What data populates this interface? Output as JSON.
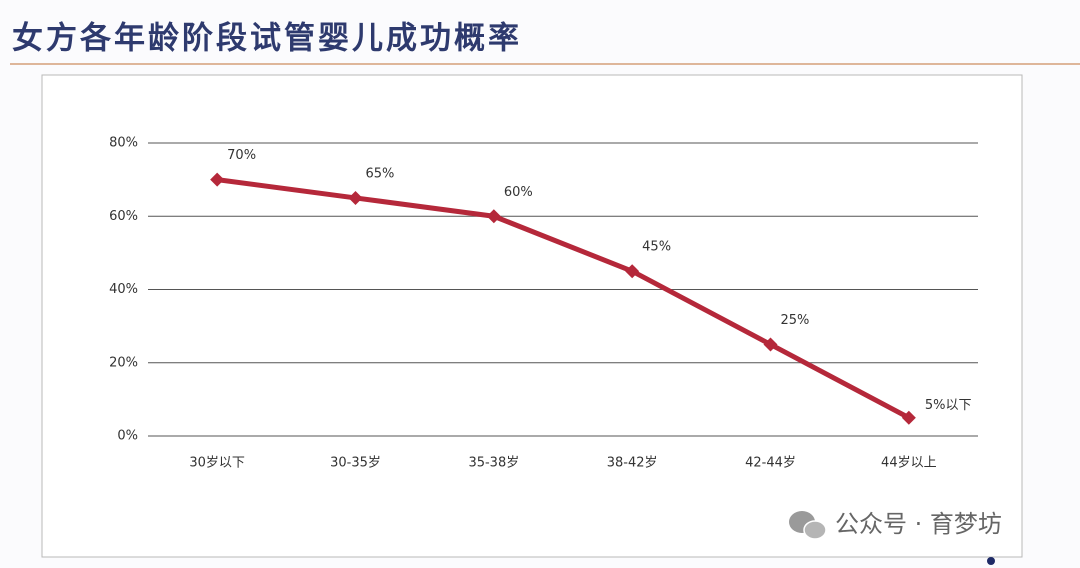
{
  "chart_data": {
    "type": "line",
    "title": "女方各年龄阶段试管婴儿成功概率",
    "categories": [
      "30岁以下",
      "30-35岁",
      "35-38岁",
      "38-42岁",
      "42-44岁",
      "44岁以上"
    ],
    "values": [
      70,
      65,
      60,
      45,
      25,
      5
    ],
    "value_labels": [
      "70%",
      "65%",
      "60%",
      "45%",
      "25%",
      "5%以下"
    ],
    "color": "#b5283a",
    "ylim": [
      0,
      80
    ],
    "yticks": [
      {
        "value": 0,
        "label": "0%"
      },
      {
        "value": 20,
        "label": "20%"
      },
      {
        "value": 40,
        "label": "40%"
      },
      {
        "value": 60,
        "label": "60%"
      },
      {
        "value": 80,
        "label": "80%"
      }
    ],
    "grid": true,
    "watermark": "公众号 · 育梦坊"
  }
}
